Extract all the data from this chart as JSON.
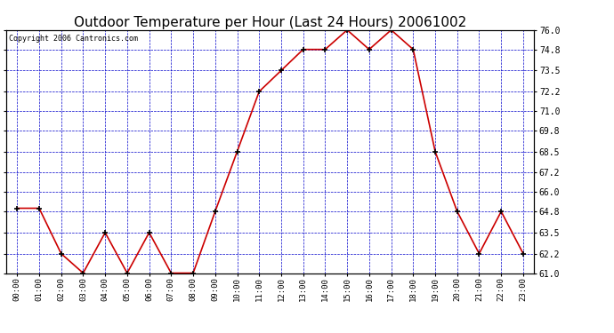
{
  "title": "Outdoor Temperature per Hour (Last 24 Hours) 20061002",
  "copyright": "Copyright 2006 Cantronics.com",
  "hours": [
    "00:00",
    "01:00",
    "02:00",
    "03:00",
    "04:00",
    "05:00",
    "06:00",
    "07:00",
    "08:00",
    "09:00",
    "10:00",
    "11:00",
    "12:00",
    "13:00",
    "14:00",
    "15:00",
    "16:00",
    "17:00",
    "18:00",
    "19:00",
    "20:00",
    "21:00",
    "22:00",
    "23:00"
  ],
  "temps": [
    65.0,
    65.0,
    62.2,
    61.0,
    63.5,
    61.0,
    63.5,
    61.0,
    61.0,
    64.8,
    68.5,
    72.2,
    73.5,
    74.8,
    74.8,
    76.0,
    74.8,
    76.0,
    74.8,
    68.5,
    64.8,
    62.2,
    64.8,
    62.2
  ],
  "line_color": "#cc0000",
  "marker_color": "#000000",
  "bg_color": "#ffffff",
  "grid_color": "#0000cc",
  "title_fontsize": 11,
  "copyright_fontsize": 6,
  "ylim": [
    61.0,
    76.0
  ],
  "yticks": [
    61.0,
    62.2,
    63.5,
    64.8,
    66.0,
    67.2,
    68.5,
    69.8,
    71.0,
    72.2,
    73.5,
    74.8,
    76.0
  ]
}
